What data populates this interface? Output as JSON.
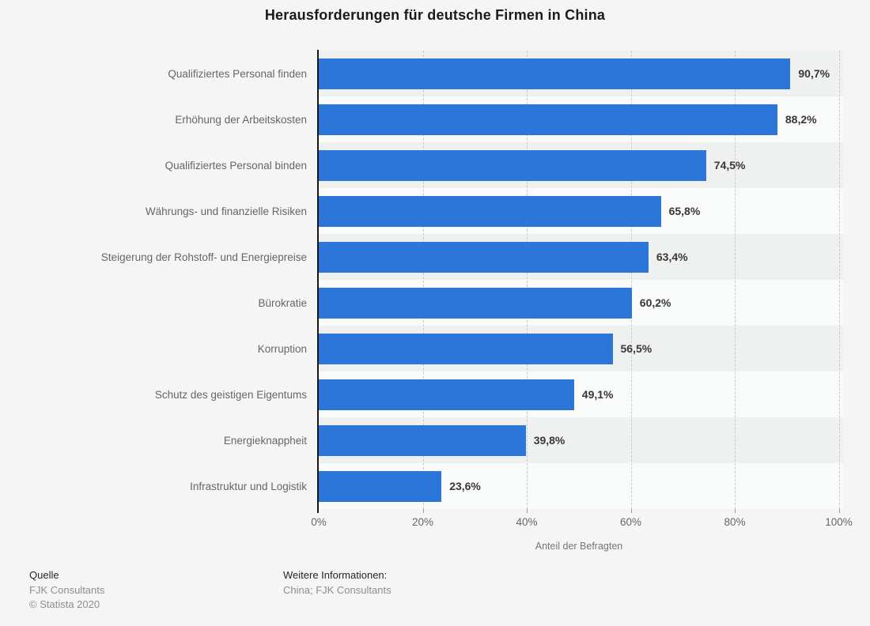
{
  "title": "Herausforderungen für deutsche Firmen in China",
  "chart_data": {
    "type": "bar",
    "orientation": "horizontal",
    "title": "Herausforderungen für deutsche Firmen in China",
    "categories": [
      "Qualifiziertes Personal finden",
      "Erhöhung der Arbeitskosten",
      "Qualifiziertes Personal binden",
      "Währungs- und finanzielle Risiken",
      "Steigerung der Rohstoff- und Energiepreise",
      "Bürokratie",
      "Korruption",
      "Schutz des geistigen Eigentums",
      "Energieknappheit",
      "Infrastruktur und Logistik"
    ],
    "values": [
      90.7,
      88.2,
      74.5,
      65.8,
      63.4,
      60.2,
      56.5,
      49.1,
      39.8,
      23.6
    ],
    "value_labels": [
      "90,7%",
      "88,2%",
      "74,5%",
      "65,8%",
      "63,4%",
      "60,2%",
      "56,5%",
      "49,1%",
      "39,8%",
      "23,6%"
    ],
    "xlabel": "Anteil der Befragten",
    "ylabel": "",
    "xlim": [
      0,
      100
    ],
    "x_ticks": [
      "0%",
      "20%",
      "40%",
      "60%",
      "80%",
      "100%"
    ],
    "grid": "vertical-dashed",
    "legend": "none",
    "bar_color": "#2b76d8",
    "row_stripe_dark": "#eff0f0",
    "row_stripe_light": "#f9fafa",
    "background_color": "#f5f5f5"
  },
  "footer": {
    "source_heading": "Quelle",
    "source": "FJK Consultants",
    "copyright": "© Statista 2020",
    "info_heading": "Weitere Informationen:",
    "info": "China; FJK Consultants"
  }
}
